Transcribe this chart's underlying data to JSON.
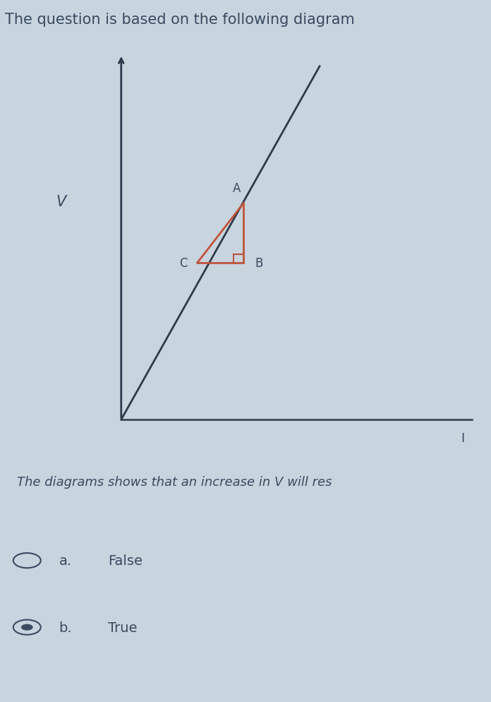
{
  "title": "The question is based on the following diagram",
  "title_fontsize": 15,
  "subtitle": "The diagrams shows that an increase in V will res",
  "subtitle_fontsize": 13,
  "bg_color": "#c8d4de",
  "plot_bg_color": "#e8eef2",
  "axis_color": "#2d3a4a",
  "line_color": "#2d3a4a",
  "triangle_color": "#c0533a",
  "v_label": "V",
  "i_label": "I",
  "a_label": "A",
  "b_label": "B",
  "c_label": "C",
  "option_a": "False",
  "option_b": "True",
  "options_fontsize": 14,
  "text_color": "#3a4a60"
}
